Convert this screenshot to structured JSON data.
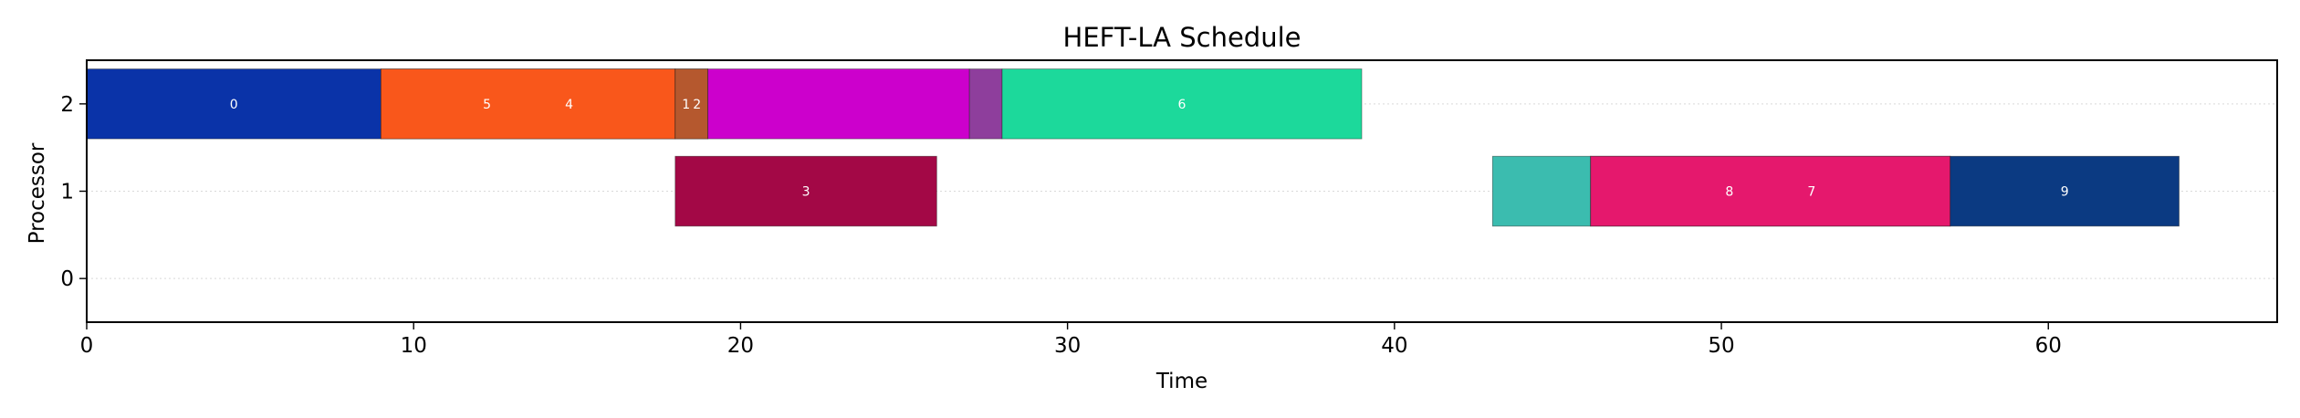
{
  "chart_data": {
    "type": "gantt",
    "title": "HEFT-LA Schedule",
    "xlabel": "Time",
    "ylabel": "Processor",
    "xlim": [
      0,
      67
    ],
    "ylim": [
      -0.5,
      2.5
    ],
    "xticks": [
      0,
      10,
      20,
      30,
      40,
      50,
      60
    ],
    "yticks": [
      0,
      1,
      2
    ],
    "grid": "horizontal dotted",
    "tasks": [
      {
        "processor": 2,
        "start": 0,
        "end": 9,
        "color": "#0a33a8",
        "label": "0"
      },
      {
        "processor": 2,
        "start": 9,
        "end": 18,
        "color": "#f9571b",
        "label": "5"
      },
      {
        "processor": 2,
        "start": 9,
        "end": 18,
        "color": "#f9571b",
        "label": "4"
      },
      {
        "processor": 2,
        "start": 18,
        "end": 19,
        "color": "#b5582e",
        "label": "1"
      },
      {
        "processor": 2,
        "start": 18,
        "end": 19,
        "color": "#b5582e",
        "label": "2"
      },
      {
        "processor": 2,
        "start": 19,
        "end": 27,
        "color": "#cc00cc",
        "label": ""
      },
      {
        "processor": 2,
        "start": 27,
        "end": 28,
        "color": "#8e3e9c",
        "label": ""
      },
      {
        "processor": 2,
        "start": 28,
        "end": 39,
        "color": "#1cd99b",
        "label": "6"
      },
      {
        "processor": 1,
        "start": 18,
        "end": 26,
        "color": "#a30846",
        "label": "3"
      },
      {
        "processor": 1,
        "start": 43,
        "end": 46,
        "color": "#3bbcaf",
        "label": ""
      },
      {
        "processor": 1,
        "start": 46,
        "end": 57,
        "color": "#e5186d",
        "label": "8"
      },
      {
        "processor": 1,
        "start": 46,
        "end": 57,
        "color": "#e5186d",
        "label": "7"
      },
      {
        "processor": 1,
        "start": 57,
        "end": 64,
        "color": "#0b3a82",
        "label": "9"
      }
    ]
  }
}
